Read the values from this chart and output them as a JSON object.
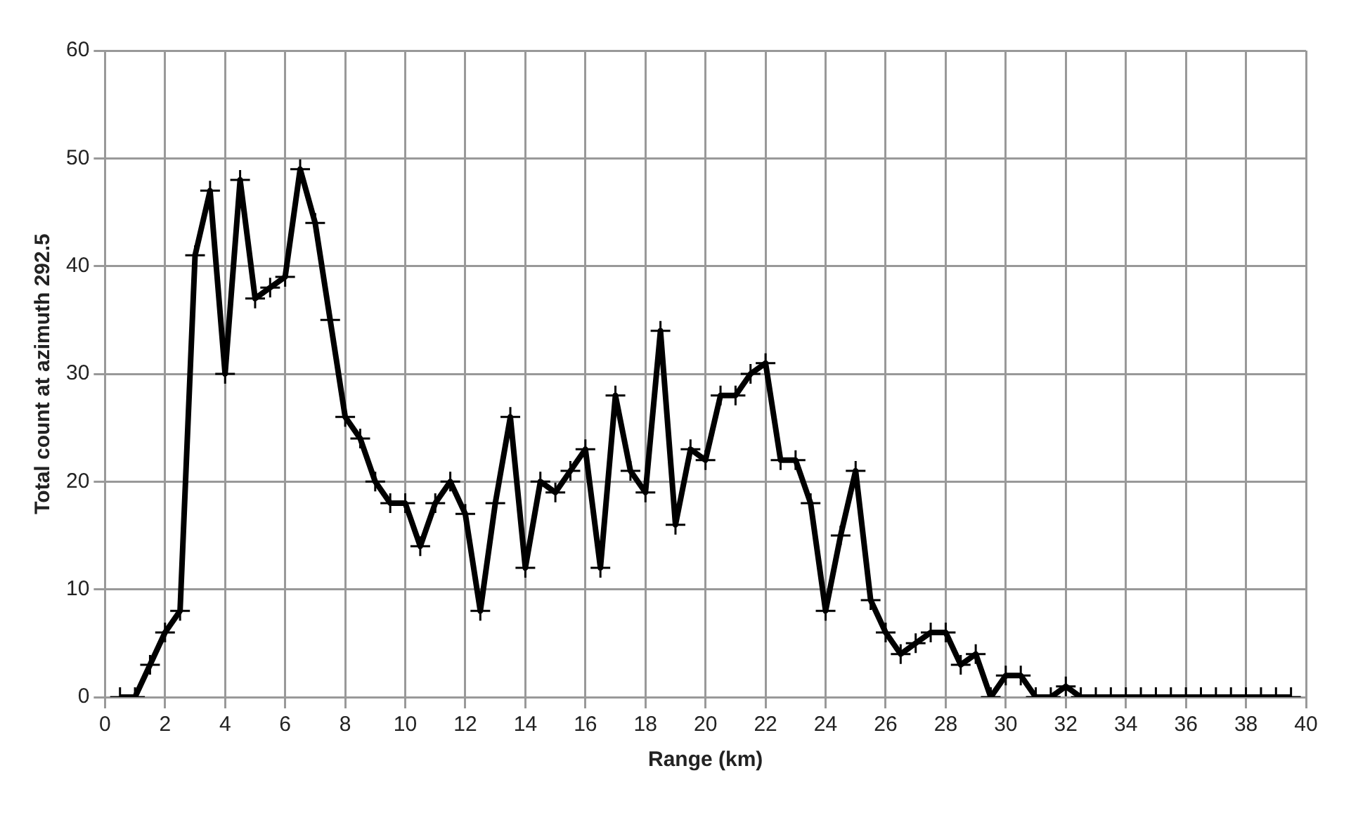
{
  "chart_data": {
    "type": "line",
    "xlabel": "Range (km)",
    "ylabel": "Total count at azimuth 292.5",
    "x": [
      0.5,
      1,
      1.5,
      2,
      2.5,
      3,
      3.5,
      4,
      4.5,
      5,
      5.5,
      6,
      6.5,
      7,
      7.5,
      8,
      8.5,
      9,
      9.5,
      10,
      10.5,
      11,
      11.5,
      12,
      12.5,
      13,
      13.5,
      14,
      14.5,
      15,
      15.5,
      16,
      16.5,
      17,
      17.5,
      18,
      18.5,
      19,
      19.5,
      20,
      20.5,
      21,
      21.5,
      22,
      22.5,
      23,
      23.5,
      24,
      24.5,
      25,
      25.5,
      26,
      26.5,
      27,
      27.5,
      28,
      28.5,
      29,
      29.5,
      30,
      30.5,
      31,
      31.5,
      32,
      32.5,
      33,
      33.5,
      34,
      34.5,
      35,
      35.5,
      36,
      36.5,
      37,
      37.5,
      38,
      38.5,
      39,
      39.5
    ],
    "series": [
      {
        "color": "#000000",
        "values": [
          0,
          0,
          3,
          6,
          8,
          41,
          47,
          30,
          48,
          37,
          38,
          39,
          49,
          44,
          35,
          26,
          24,
          20,
          18,
          18,
          14,
          18,
          20,
          17,
          8,
          18,
          26,
          12,
          20,
          19,
          21,
          23,
          12,
          28,
          21,
          19,
          34,
          16,
          23,
          22,
          28,
          28,
          30,
          31,
          22,
          22,
          18,
          8,
          15,
          21,
          9,
          6,
          4,
          5,
          6,
          6,
          3,
          4,
          0,
          2,
          2,
          0,
          0,
          1,
          0,
          0,
          0,
          0,
          0,
          0,
          0,
          0,
          0,
          0,
          0,
          0,
          0,
          0,
          0
        ]
      }
    ],
    "xlim": [
      0,
      40
    ],
    "xticks": [
      0,
      2,
      4,
      6,
      8,
      10,
      12,
      14,
      16,
      18,
      20,
      22,
      24,
      26,
      28,
      30,
      32,
      34,
      36,
      38,
      40
    ],
    "ylim": [
      0,
      60
    ],
    "yticks": [
      0,
      10,
      20,
      30,
      40,
      50,
      60
    ],
    "grid": true,
    "marker": "cross",
    "line_style": "solid",
    "legend": false
  }
}
